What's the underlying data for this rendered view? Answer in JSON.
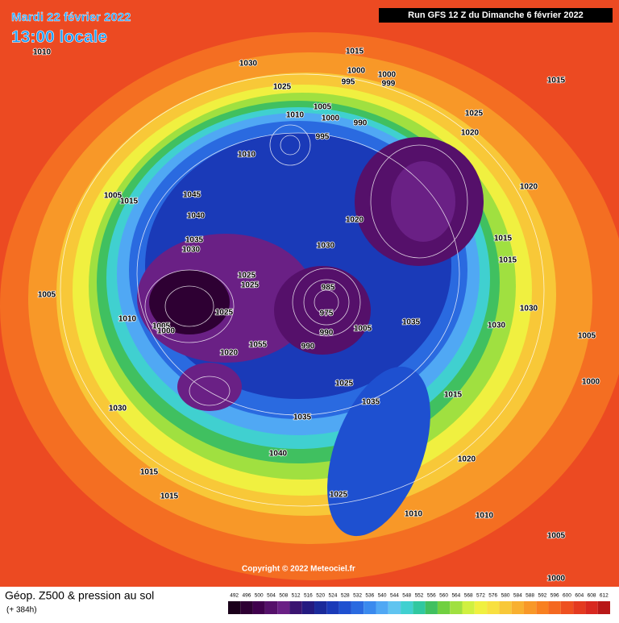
{
  "header": {
    "date": "Mardi 22 février 2022",
    "time": "13:00 locale",
    "run": "Run GFS 12 Z du Dimanche 6 février 2022"
  },
  "footer": {
    "title": "Géop. Z500 & pression au sol",
    "lead": "(+ 384h)",
    "copyright": "Copyright © 2022 Meteociel.fr"
  },
  "colorbar": {
    "values": [
      492,
      496,
      500,
      504,
      508,
      512,
      516,
      520,
      524,
      528,
      532,
      536,
      540,
      544,
      548,
      552,
      556,
      560,
      564,
      568,
      572,
      576,
      580,
      584,
      588,
      592,
      596,
      600,
      604,
      608,
      612
    ],
    "colors": [
      "#1a001a",
      "#2e0033",
      "#40004d",
      "#55106a",
      "#6a2085",
      "#3a1470",
      "#241a80",
      "#1a2a9a",
      "#1a3ab8",
      "#1e50d0",
      "#2a6ae0",
      "#3a8aee",
      "#50a8f4",
      "#60c4f0",
      "#40d0d0",
      "#30c8a0",
      "#40c060",
      "#70d040",
      "#a0e040",
      "#d0f040",
      "#f0f040",
      "#f8e040",
      "#f8c838",
      "#f8b030",
      "#f89828",
      "#f88020",
      "#f46820",
      "#ee5020",
      "#e43a20",
      "#d82820",
      "#b81818"
    ]
  },
  "isobar_labels": [
    "1010",
    "1030",
    "1015",
    "1000",
    "995",
    "1000",
    "999",
    "1025",
    "1005",
    "1010",
    "1000",
    "990",
    "995",
    "1015",
    "1025",
    "1020",
    "1010",
    "1045",
    "1040",
    "1005",
    "1015",
    "1035",
    "1030",
    "1020",
    "1030",
    "1015",
    "1025",
    "1025",
    "1025",
    "1005",
    "1000",
    "985",
    "975",
    "990",
    "1005",
    "1035",
    "1030",
    "1010",
    "1055",
    "990",
    "1020",
    "1015",
    "1030",
    "1025",
    "1035",
    "1035",
    "1040",
    "1020",
    "1025",
    "1010",
    "1015",
    "1015",
    "1010",
    "1005",
    "1000",
    "1000",
    "1020",
    "1030",
    "1005",
    "1015",
    "1005"
  ]
}
